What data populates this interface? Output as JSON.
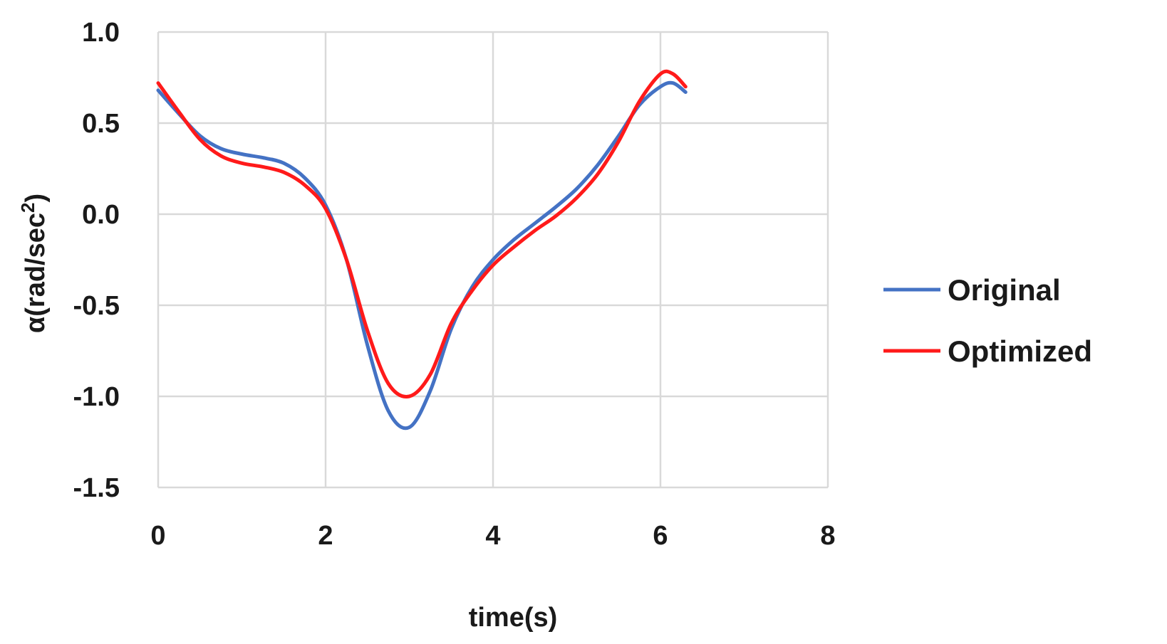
{
  "chart_data": {
    "type": "line",
    "xlabel": "time(s)",
    "ylabel_main": "α(rad/sec",
    "ylabel_sup": "2",
    "ylabel_close": ")",
    "xlim": [
      0,
      8
    ],
    "ylim": [
      -1.5,
      1.0
    ],
    "x_ticks": [
      0,
      2,
      4,
      6,
      8
    ],
    "x_tick_labels": [
      "0",
      "2",
      "4",
      "6",
      "8"
    ],
    "y_ticks": [
      1.0,
      0.5,
      0.0,
      -0.5,
      -1.0,
      -1.5
    ],
    "y_tick_labels": [
      "1.0",
      "0.5",
      "0.0",
      "-0.5",
      "-1.0",
      "-1.5"
    ],
    "grid": true,
    "legend_position": "right",
    "series": [
      {
        "name": "Original",
        "color": "#4472c4",
        "x": [
          0,
          0.25,
          0.5,
          0.75,
          1.0,
          1.25,
          1.5,
          1.75,
          2.0,
          2.25,
          2.5,
          2.75,
          3.0,
          3.25,
          3.5,
          3.75,
          4.0,
          4.25,
          4.5,
          4.75,
          5.0,
          5.25,
          5.5,
          5.75,
          6.0,
          6.15,
          6.3
        ],
        "y": [
          0.68,
          0.55,
          0.43,
          0.36,
          0.33,
          0.31,
          0.28,
          0.2,
          0.05,
          -0.25,
          -0.72,
          -1.08,
          -1.17,
          -0.97,
          -0.63,
          -0.4,
          -0.25,
          -0.14,
          -0.05,
          0.04,
          0.14,
          0.27,
          0.43,
          0.6,
          0.7,
          0.72,
          0.67
        ]
      },
      {
        "name": "Optimized",
        "color": "#ff1a1a",
        "x": [
          0,
          0.25,
          0.5,
          0.75,
          1.0,
          1.25,
          1.5,
          1.75,
          2.0,
          2.25,
          2.5,
          2.75,
          3.0,
          3.25,
          3.5,
          3.75,
          4.0,
          4.25,
          4.5,
          4.75,
          5.0,
          5.25,
          5.5,
          5.75,
          6.0,
          6.15,
          6.3
        ],
        "y": [
          0.72,
          0.56,
          0.41,
          0.32,
          0.28,
          0.26,
          0.23,
          0.16,
          0.03,
          -0.25,
          -0.64,
          -0.93,
          -1.0,
          -0.88,
          -0.6,
          -0.42,
          -0.28,
          -0.18,
          -0.09,
          -0.01,
          0.09,
          0.22,
          0.4,
          0.62,
          0.77,
          0.77,
          0.7
        ]
      }
    ]
  }
}
